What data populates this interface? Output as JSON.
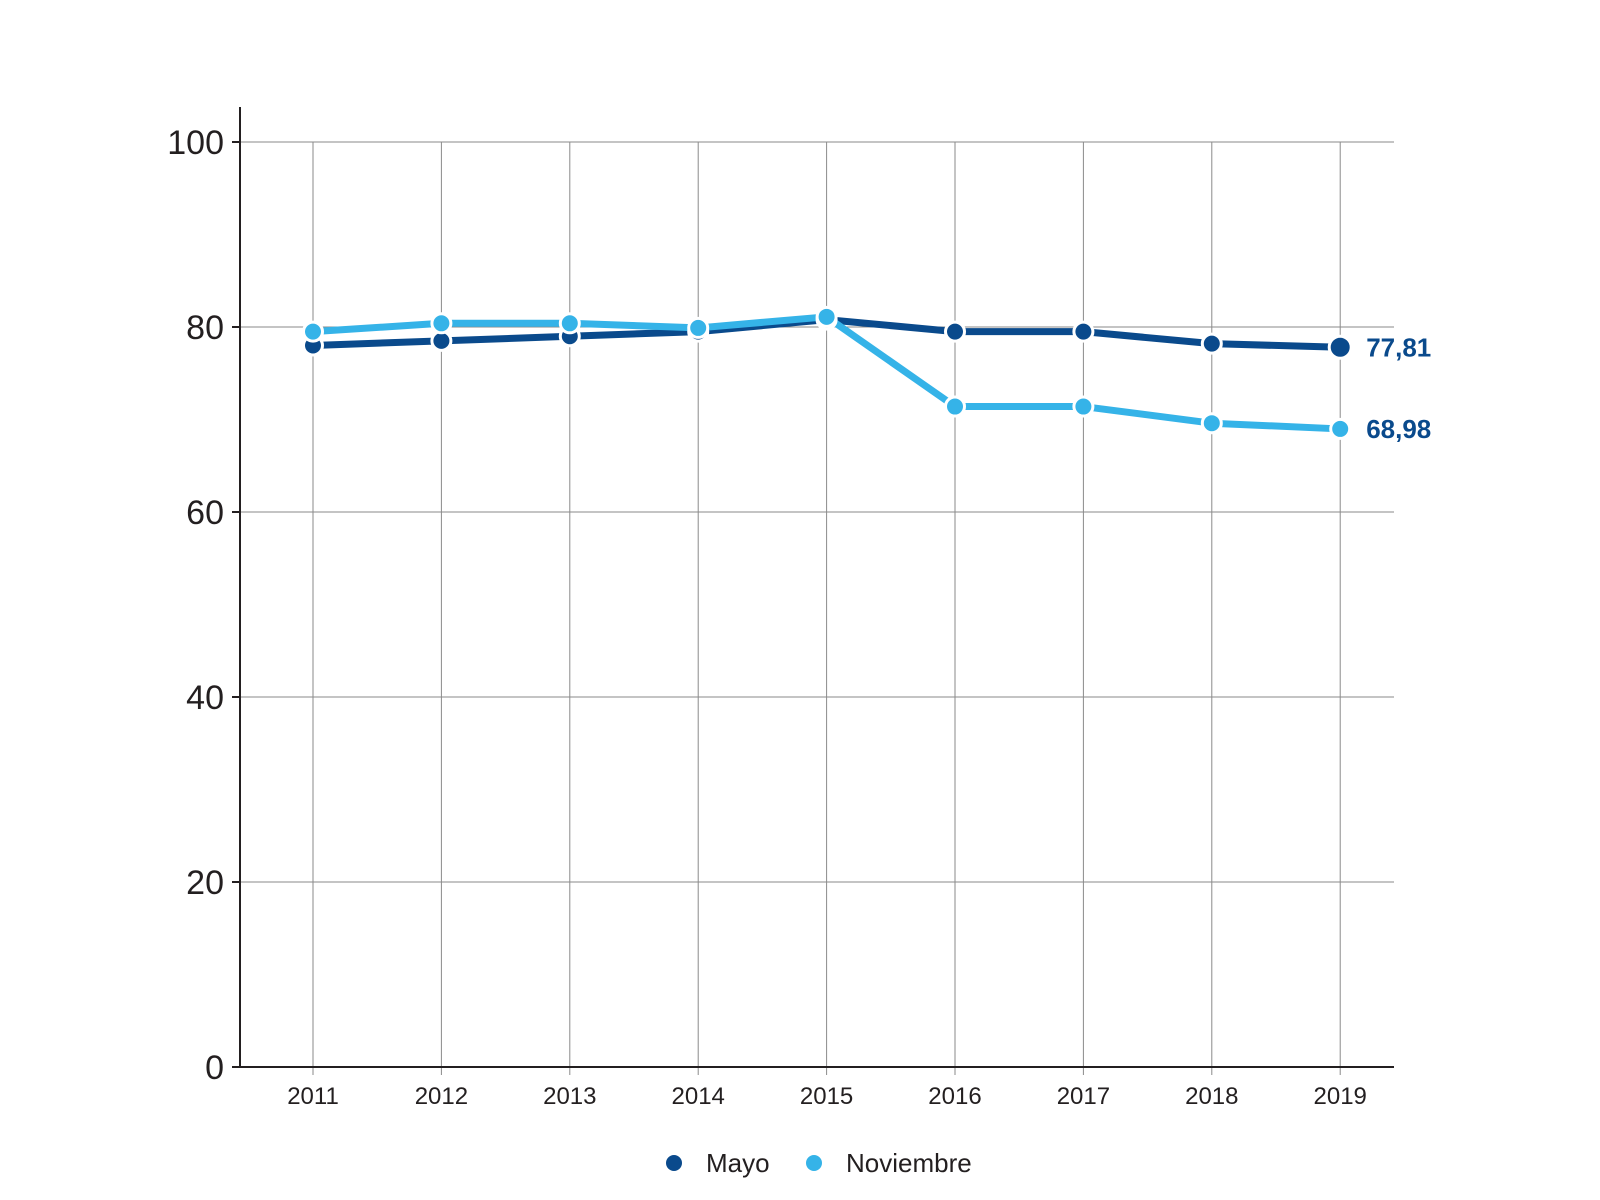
{
  "chart_data": {
    "type": "line",
    "x": [
      "2011",
      "2012",
      "2013",
      "2014",
      "2015",
      "2016",
      "2017",
      "2018",
      "2019"
    ],
    "series": [
      {
        "name": "Mayo",
        "color": "#0a4a8c",
        "values": [
          78.0,
          78.5,
          79.0,
          79.5,
          80.8,
          79.5,
          79.5,
          78.2,
          77.81
        ]
      },
      {
        "name": "Noviembre",
        "color": "#35b3e8",
        "values": [
          79.5,
          80.4,
          80.4,
          79.9,
          81.1,
          71.4,
          71.4,
          69.6,
          68.98
        ]
      }
    ],
    "end_labels": [
      "77,81",
      "68,98"
    ],
    "end_label_color": "#0a4a8c",
    "yticks": [
      "0",
      "20",
      "40",
      "60",
      "80",
      "100"
    ],
    "ylim": [
      0,
      100
    ],
    "grid": true,
    "legend_position": "bottom-center",
    "title": "",
    "xlabel": "",
    "ylabel": ""
  }
}
